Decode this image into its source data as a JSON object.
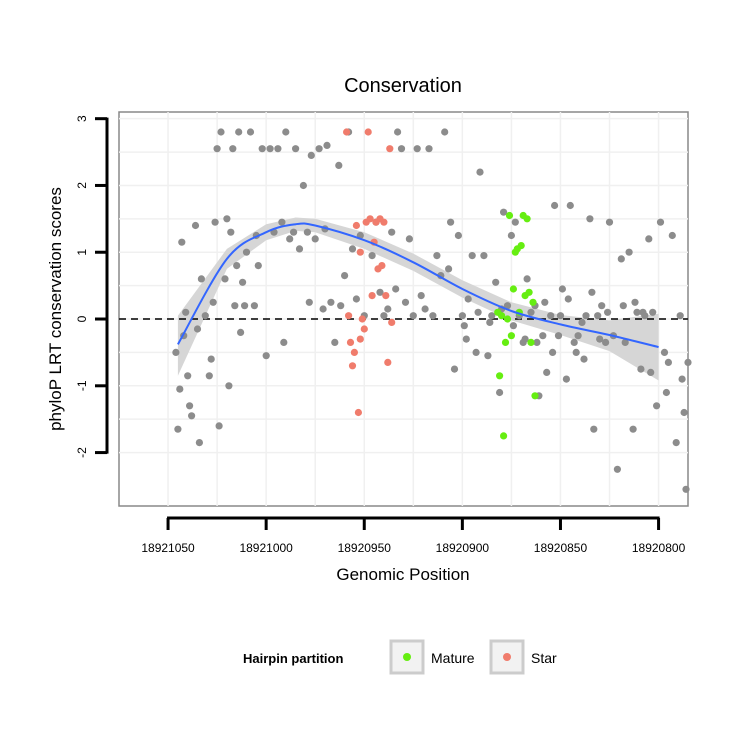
{
  "chart_data": {
    "type": "scatter",
    "title": "Conservation",
    "xlabel": "Genomic Position",
    "ylabel": "phyloP LRT conservation scores",
    "x_reversed": true,
    "xlim": [
      18921075,
      18920785
    ],
    "ylim": [
      -2.8,
      3.1
    ],
    "x_ticks": [
      18921050,
      18921000,
      18920950,
      18920900,
      18920850,
      18920800
    ],
    "x_tick_labels": [
      "18921050",
      "18921000",
      "18920950",
      "18920900",
      "18920850",
      "18920800"
    ],
    "y_ticks": [
      -2,
      -1,
      0,
      1,
      2,
      3
    ],
    "y_tick_labels": [
      "-2",
      "-1",
      "0",
      "1",
      "2",
      "3"
    ],
    "reference_line_y": 0,
    "grid": true,
    "legend": {
      "title": "Hairpin partition",
      "placement": "bottom",
      "entries": [
        {
          "label": "Mature",
          "color": "#66ee11"
        },
        {
          "label": "Star",
          "color": "#f07c6c"
        }
      ]
    },
    "colors": {
      "other": "#8c8c8c",
      "Mature": "#66ee11",
      "Star": "#f07c6c",
      "smooth": "#3366ff",
      "band": "#d6d6d6",
      "panel_border": "#888888"
    },
    "smooth": {
      "x": [
        18921045,
        18921020,
        18921000,
        18920985,
        18920975,
        18920950,
        18920925,
        18920900,
        18920875,
        18920850,
        18920825,
        18920800
      ],
      "y": [
        -0.38,
        0.9,
        1.3,
        1.42,
        1.4,
        1.18,
        0.85,
        0.45,
        0.12,
        -0.08,
        -0.24,
        -0.42
      ],
      "lower": [
        -0.85,
        0.75,
        1.18,
        1.32,
        1.3,
        1.05,
        0.72,
        0.32,
        -0.02,
        -0.24,
        -0.48,
        -0.92
      ],
      "upper": [
        0.05,
        1.05,
        1.42,
        1.52,
        1.5,
        1.3,
        0.98,
        0.58,
        0.25,
        0.06,
        -0.02,
        0.08
      ]
    },
    "series": [
      {
        "name": "",
        "points": [
          [
            18921046,
            -0.5
          ],
          [
            18921045,
            -1.65
          ],
          [
            18921044,
            -1.05
          ],
          [
            18921043,
            1.15
          ],
          [
            18921042,
            -0.25
          ],
          [
            18921041,
            0.1
          ],
          [
            18921040,
            -0.85
          ],
          [
            18921039,
            -1.3
          ],
          [
            18921038,
            -1.45
          ],
          [
            18921036,
            1.4
          ],
          [
            18921035,
            -0.15
          ],
          [
            18921034,
            -1.85
          ],
          [
            18921033,
            0.6
          ],
          [
            18921031,
            0.05
          ],
          [
            18921029,
            -0.85
          ],
          [
            18921028,
            -0.6
          ],
          [
            18921027,
            0.25
          ],
          [
            18921026,
            1.45
          ],
          [
            18921025,
            2.55
          ],
          [
            18921024,
            -1.6
          ],
          [
            18921023,
            2.8
          ],
          [
            18921021,
            0.6
          ],
          [
            18921020,
            1.5
          ],
          [
            18921019,
            -1.0
          ],
          [
            18921018,
            1.3
          ],
          [
            18921017,
            2.55
          ],
          [
            18921016,
            0.2
          ],
          [
            18921015,
            0.8
          ],
          [
            18921014,
            2.8
          ],
          [
            18921013,
            -0.2
          ],
          [
            18921012,
            0.55
          ],
          [
            18921011,
            0.2
          ],
          [
            18921010,
            1.0
          ],
          [
            18921008,
            2.8
          ],
          [
            18921006,
            0.2
          ],
          [
            18921005,
            1.25
          ],
          [
            18921004,
            0.8
          ],
          [
            18921002,
            2.55
          ],
          [
            18921000,
            -0.55
          ],
          [
            18920998,
            2.55
          ],
          [
            18920996,
            1.3
          ],
          [
            18920994,
            2.55
          ],
          [
            18920992,
            1.45
          ],
          [
            18920991,
            -0.35
          ],
          [
            18920990,
            2.8
          ],
          [
            18920988,
            1.2
          ],
          [
            18920986,
            1.3
          ],
          [
            18920985,
            2.55
          ],
          [
            18920983,
            1.05
          ],
          [
            18920981,
            2.0
          ],
          [
            18920979,
            1.3
          ],
          [
            18920978,
            0.25
          ],
          [
            18920977,
            2.45
          ],
          [
            18920975,
            1.2
          ],
          [
            18920973,
            2.55
          ],
          [
            18920971,
            0.15
          ],
          [
            18920970,
            1.35
          ],
          [
            18920969,
            2.6
          ],
          [
            18920967,
            0.25
          ],
          [
            18920965,
            -0.35
          ],
          [
            18920963,
            2.3
          ],
          [
            18920962,
            0.2
          ],
          [
            18920960,
            0.65
          ],
          [
            18920958,
            2.8
          ],
          [
            18920956,
            1.05
          ],
          [
            18920954,
            0.3
          ],
          [
            18920952,
            1.25
          ],
          [
            18920950,
            0.05
          ],
          [
            18920946,
            0.95
          ],
          [
            18920944,
            1.45
          ],
          [
            18920942,
            0.4
          ],
          [
            18920940,
            0.05
          ],
          [
            18920938,
            0.15
          ],
          [
            18920936,
            1.3
          ],
          [
            18920934,
            0.45
          ],
          [
            18920933,
            2.8
          ],
          [
            18920931,
            2.55
          ],
          [
            18920929,
            0.25
          ],
          [
            18920927,
            1.2
          ],
          [
            18920925,
            0.05
          ],
          [
            18920923,
            2.55
          ],
          [
            18920921,
            0.35
          ],
          [
            18920919,
            0.15
          ],
          [
            18920917,
            2.55
          ],
          [
            18920915,
            0.05
          ],
          [
            18920913,
            0.95
          ],
          [
            18920911,
            0.65
          ],
          [
            18920909,
            2.8
          ],
          [
            18920907,
            0.75
          ],
          [
            18920906,
            1.45
          ],
          [
            18920904,
            -0.75
          ],
          [
            18920902,
            1.25
          ],
          [
            18920900,
            0.05
          ],
          [
            18920899,
            -0.1
          ],
          [
            18920897,
            0.3
          ],
          [
            18920895,
            0.95
          ],
          [
            18920893,
            -0.5
          ],
          [
            18920891,
            2.2
          ],
          [
            18920889,
            0.95
          ],
          [
            18920887,
            -0.55
          ],
          [
            18920885,
            0.05
          ],
          [
            18920883,
            0.55
          ],
          [
            18920881,
            -1.1
          ],
          [
            18920879,
            1.6
          ],
          [
            18920877,
            0.2
          ],
          [
            18920875,
            1.25
          ],
          [
            18920873,
            1.45
          ],
          [
            18920871,
            0.05
          ],
          [
            18920869,
            -0.35
          ],
          [
            18920867,
            0.6
          ],
          [
            18920865,
            0.1
          ],
          [
            18920863,
            0.2
          ],
          [
            18920861,
            -1.15
          ],
          [
            18920859,
            -0.25
          ],
          [
            18920857,
            -0.8
          ],
          [
            18920855,
            0.05
          ],
          [
            18920853,
            1.7
          ],
          [
            18920851,
            -0.25
          ],
          [
            18920849,
            0.45
          ],
          [
            18920847,
            -0.9
          ],
          [
            18920845,
            1.7
          ],
          [
            18920843,
            -0.35
          ],
          [
            18920841,
            -0.25
          ],
          [
            18920839,
            -0.05
          ],
          [
            18920837,
            0.05
          ],
          [
            18920835,
            1.5
          ],
          [
            18920833,
            -1.65
          ],
          [
            18920831,
            0.05
          ],
          [
            18920829,
            0.2
          ],
          [
            18920827,
            -0.35
          ],
          [
            18920825,
            1.45
          ],
          [
            18920823,
            -0.25
          ],
          [
            18920821,
            -2.25
          ],
          [
            18920819,
            0.9
          ],
          [
            18920817,
            -0.35
          ],
          [
            18920815,
            1.0
          ],
          [
            18920813,
            -1.65
          ],
          [
            18920811,
            0.1
          ],
          [
            18920809,
            -0.75
          ],
          [
            18920807,
            0.05
          ],
          [
            18920805,
            1.2
          ],
          [
            18920803,
            0.1
          ],
          [
            18920801,
            -1.3
          ],
          [
            18920799,
            1.45
          ],
          [
            18920797,
            -0.5
          ],
          [
            18920795,
            -0.65
          ],
          [
            18920793,
            1.25
          ],
          [
            18920791,
            -1.85
          ],
          [
            18920789,
            0.05
          ],
          [
            18920787,
            -1.4
          ],
          [
            18920786,
            -2.55
          ],
          [
            18920785,
            -0.65
          ],
          [
            18920788,
            -0.9
          ],
          [
            18920796,
            -1.1
          ],
          [
            18920804,
            -0.8
          ],
          [
            18920808,
            0.1
          ],
          [
            18920812,
            0.25
          ],
          [
            18920818,
            0.2
          ],
          [
            18920826,
            0.1
          ],
          [
            18920830,
            -0.3
          ],
          [
            18920834,
            0.4
          ],
          [
            18920838,
            -0.6
          ],
          [
            18920842,
            -0.5
          ],
          [
            18920846,
            0.3
          ],
          [
            18920850,
            0.05
          ],
          [
            18920854,
            -0.5
          ],
          [
            18920858,
            0.25
          ],
          [
            18920862,
            -0.35
          ],
          [
            18920868,
            -0.3
          ],
          [
            18920874,
            -0.1
          ],
          [
            18920880,
            0.15
          ],
          [
            18920886,
            -0.05
          ],
          [
            18920892,
            0.1
          ],
          [
            18920898,
            -0.3
          ]
        ]
      },
      {
        "name": "Mature",
        "points": [
          [
            18920882,
            0.1
          ],
          [
            18920881,
            -0.85
          ],
          [
            18920880,
            0.05
          ],
          [
            18920879,
            -1.75
          ],
          [
            18920878,
            -0.35
          ],
          [
            18920877,
            0.0
          ],
          [
            18920876,
            1.55
          ],
          [
            18920875,
            -0.25
          ],
          [
            18920874,
            0.45
          ],
          [
            18920873,
            1.0
          ],
          [
            18920872,
            1.05
          ],
          [
            18920871,
            0.1
          ],
          [
            18920870,
            1.1
          ],
          [
            18920869,
            1.55
          ],
          [
            18920868,
            0.35
          ],
          [
            18920867,
            1.5
          ],
          [
            18920866,
            0.4
          ],
          [
            18920865,
            -0.35
          ],
          [
            18920864,
            0.25
          ],
          [
            18920863,
            -1.15
          ]
        ]
      },
      {
        "name": "Star",
        "points": [
          [
            18920958,
            0.05
          ],
          [
            18920957,
            -0.35
          ],
          [
            18920956,
            -0.7
          ],
          [
            18920955,
            -0.5
          ],
          [
            18920954,
            1.4
          ],
          [
            18920953,
            -1.4
          ],
          [
            18920952,
            -0.3
          ],
          [
            18920951,
            0.0
          ],
          [
            18920950,
            -0.15
          ],
          [
            18920949,
            1.45
          ],
          [
            18920948,
            2.8
          ],
          [
            18920947,
            1.5
          ],
          [
            18920946,
            0.35
          ],
          [
            18920945,
            1.15
          ],
          [
            18920944,
            1.45
          ],
          [
            18920943,
            0.75
          ],
          [
            18920942,
            1.5
          ],
          [
            18920941,
            0.8
          ],
          [
            18920940,
            1.45
          ],
          [
            18920939,
            0.35
          ],
          [
            18920938,
            -0.65
          ],
          [
            18920937,
            2.55
          ],
          [
            18920936,
            -0.05
          ],
          [
            18920959,
            2.8
          ],
          [
            18920952,
            1.0
          ]
        ]
      }
    ]
  }
}
